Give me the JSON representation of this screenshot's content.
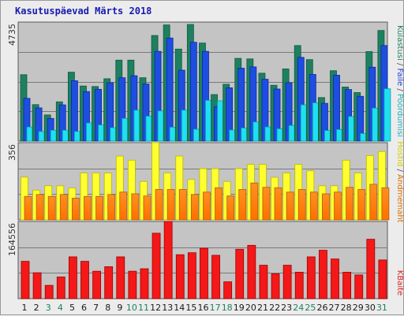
{
  "page": {
    "title": "Kasutuspäevad Märts 2018"
  },
  "colors": {
    "visits": "#1e8060",
    "pages": "#1e4ee0",
    "hits": "#20e0f0",
    "hosts": "#ffff30",
    "hosts_stroke": "#b8b800",
    "bandwidth_top": "#ff9020",
    "bandwidth_stroke": "#b06000",
    "kbytes": "#f41818",
    "kbytes_stroke": "#a00000",
    "weekday_label": "#1a1a1a",
    "weekend_label": "#1e8060",
    "legend_visits": "#1e8060",
    "legend_pages": "#2040e0",
    "legend_hits": "#20b0c0",
    "legend_hosts": "#d0d000",
    "legend_bandwidth": "#e07000",
    "legend_kbytes": "#e02020"
  },
  "chart_data": [
    {
      "type": "bar",
      "panel": "top",
      "y_max_label": "4735",
      "ylim": [
        0,
        4735
      ],
      "categories": [
        "1",
        "2",
        "3",
        "4",
        "5",
        "6",
        "7",
        "8",
        "9",
        "10",
        "11",
        "12",
        "13",
        "14",
        "15",
        "16",
        "17",
        "18",
        "19",
        "20",
        "21",
        "22",
        "23",
        "24",
        "25",
        "26",
        "27",
        "28",
        "29",
        "30",
        "31"
      ],
      "weekend_days": [
        "3",
        "4",
        "10",
        "11",
        "17",
        "18",
        "24",
        "25",
        "31"
      ],
      "legend": [
        "Külastusi",
        "Faile",
        "Pöördumisi"
      ],
      "series": [
        {
          "name": "Külastusi",
          "values": [
            2640,
            1450,
            1040,
            1560,
            2740,
            2190,
            2170,
            2480,
            3220,
            3220,
            2520,
            4200,
            4620,
            3660,
            4640,
            3900,
            1850,
            2260,
            3290,
            3270,
            2700,
            2220,
            2870,
            3800,
            3240,
            1730,
            2800,
            2150,
            1930,
            3560,
            4400
          ]
        },
        {
          "name": "Faile",
          "values": [
            1700,
            1320,
            900,
            1440,
            2400,
            1970,
            2060,
            2320,
            2520,
            2600,
            2270,
            3570,
            4100,
            2820,
            3930,
            3570,
            1370,
            2120,
            2900,
            2950,
            2460,
            2070,
            2320,
            3330,
            2650,
            1500,
            2620,
            2050,
            1780,
            2940,
            3800
          ]
        },
        {
          "name": "Pöördumisi",
          "values": [
            560,
            380,
            430,
            430,
            380,
            720,
            640,
            530,
            900,
            1230,
            990,
            1200,
            550,
            1230,
            470,
            1620,
            1600,
            440,
            520,
            760,
            560,
            490,
            620,
            1440,
            1520,
            420,
            460,
            980,
            300,
            1310,
            2080
          ]
        }
      ]
    },
    {
      "type": "bar",
      "panel": "middle",
      "y_max_label": "356",
      "ylim": [
        0,
        356
      ],
      "categories": [
        "1",
        "2",
        "3",
        "4",
        "5",
        "6",
        "7",
        "8",
        "9",
        "10",
        "11",
        "12",
        "13",
        "14",
        "15",
        "16",
        "17",
        "18",
        "19",
        "20",
        "21",
        "22",
        "23",
        "24",
        "25",
        "26",
        "27",
        "28",
        "29",
        "30",
        "31"
      ],
      "legend": [
        "Hostid",
        "Andmemaht"
      ],
      "series": [
        {
          "name": "Hostid",
          "values": [
            197,
            137,
            157,
            157,
            147,
            216,
            216,
            216,
            294,
            275,
            177,
            356,
            216,
            294,
            186,
            236,
            236,
            177,
            236,
            256,
            256,
            196,
            216,
            256,
            226,
            157,
            157,
            275,
            216,
            296,
            315
          ]
        },
        {
          "name": "Andmemaht",
          "values": [
            108,
            117,
            108,
            117,
            100,
            108,
            108,
            117,
            128,
            120,
            110,
            140,
            140,
            140,
            117,
            128,
            148,
            110,
            140,
            170,
            150,
            148,
            128,
            140,
            128,
            120,
            128,
            150,
            140,
            164,
            148
          ]
        }
      ]
    },
    {
      "type": "bar",
      "panel": "bottom",
      "y_max_label": "164556",
      "ylim": [
        0,
        164556
      ],
      "categories": [
        "1",
        "2",
        "3",
        "4",
        "5",
        "6",
        "7",
        "8",
        "9",
        "10",
        "11",
        "12",
        "13",
        "14",
        "15",
        "16",
        "17",
        "18",
        "19",
        "20",
        "21",
        "22",
        "23",
        "24",
        "25",
        "26",
        "27",
        "28",
        "29",
        "30",
        "31"
      ],
      "legend": [
        "KBaite"
      ],
      "series": [
        {
          "name": "KBaite",
          "values": [
            79600,
            55300,
            28400,
            46200,
            89100,
            79600,
            58500,
            68100,
            89100,
            58500,
            63800,
            139500,
            164556,
            93700,
            97900,
            107500,
            92400,
            35900,
            105300,
            113700,
            71300,
            53000,
            71300,
            56400,
            89100,
            103200,
            84600,
            56400,
            50600,
            126600,
            82500
          ]
        }
      ]
    }
  ]
}
